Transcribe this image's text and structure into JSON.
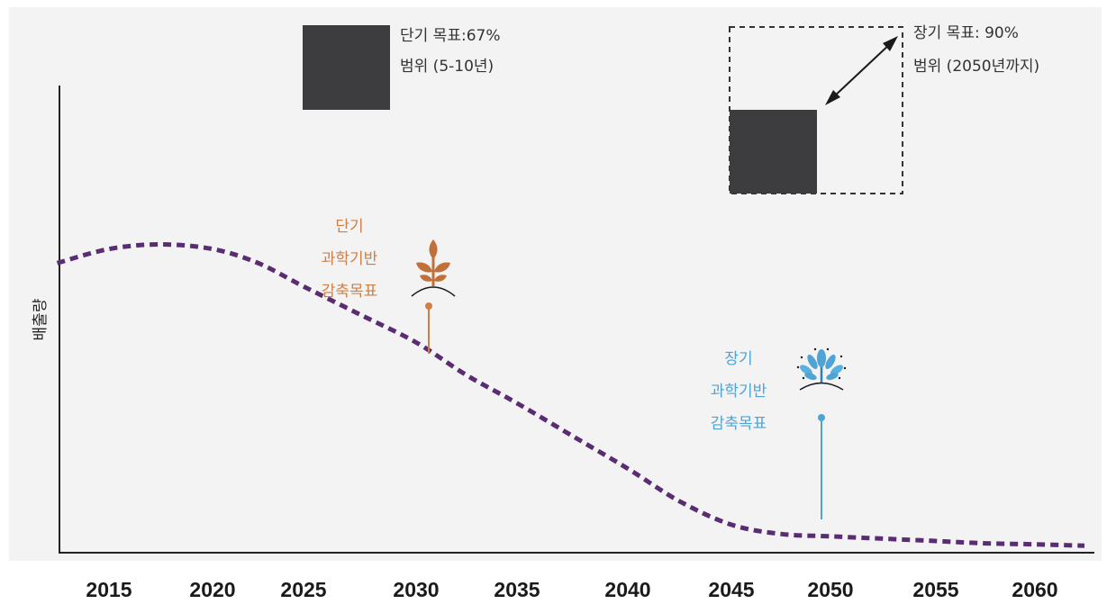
{
  "chart_data": {
    "type": "line",
    "ylabel": "배출량",
    "x_ticks": [
      "2015",
      "2020",
      "2025",
      "2030",
      "2035",
      "2040",
      "2045",
      "2050",
      "2055",
      "2060"
    ],
    "series": [
      {
        "x": [
          2012.5,
          2015,
          2017.5,
          2020,
          2022.5,
          2025,
          2027.5,
          2030,
          2032.5,
          2035,
          2037.5,
          2040,
          2042.5,
          2045,
          2047.5,
          2050,
          2052.5,
          2055,
          2057.5,
          2060,
          2062.5
        ],
        "y": [
          0.62,
          0.65,
          0.66,
          0.65,
          0.62,
          0.57,
          0.51,
          0.45,
          0.38,
          0.32,
          0.25,
          0.18,
          0.11,
          0.06,
          0.04,
          0.035,
          0.03,
          0.025,
          0.02,
          0.018,
          0.015
        ],
        "color": "#5a2d73",
        "style": "dashed"
      }
    ],
    "ylim": [
      0,
      1
    ],
    "legend": [
      {
        "line1": "단기 목표:67%",
        "line2": "범위 (5-10년)",
        "color": "#3d3d3f"
      },
      {
        "line1": "장기 목표: 90%",
        "line2": "범위 (2050년까지)",
        "color": "#3d3d3f"
      }
    ],
    "annotations": [
      {
        "lines": [
          "단기",
          "과학기반",
          "감축목표"
        ],
        "x": 2030,
        "y": 0.45,
        "color": "#cf7f45",
        "icon": "sprout-icon"
      },
      {
        "lines": [
          "장기",
          "과학기반",
          "감축목표"
        ],
        "x": 2050,
        "y": 0.035,
        "color": "#4fa3d5",
        "icon": "tree-icon"
      }
    ]
  }
}
